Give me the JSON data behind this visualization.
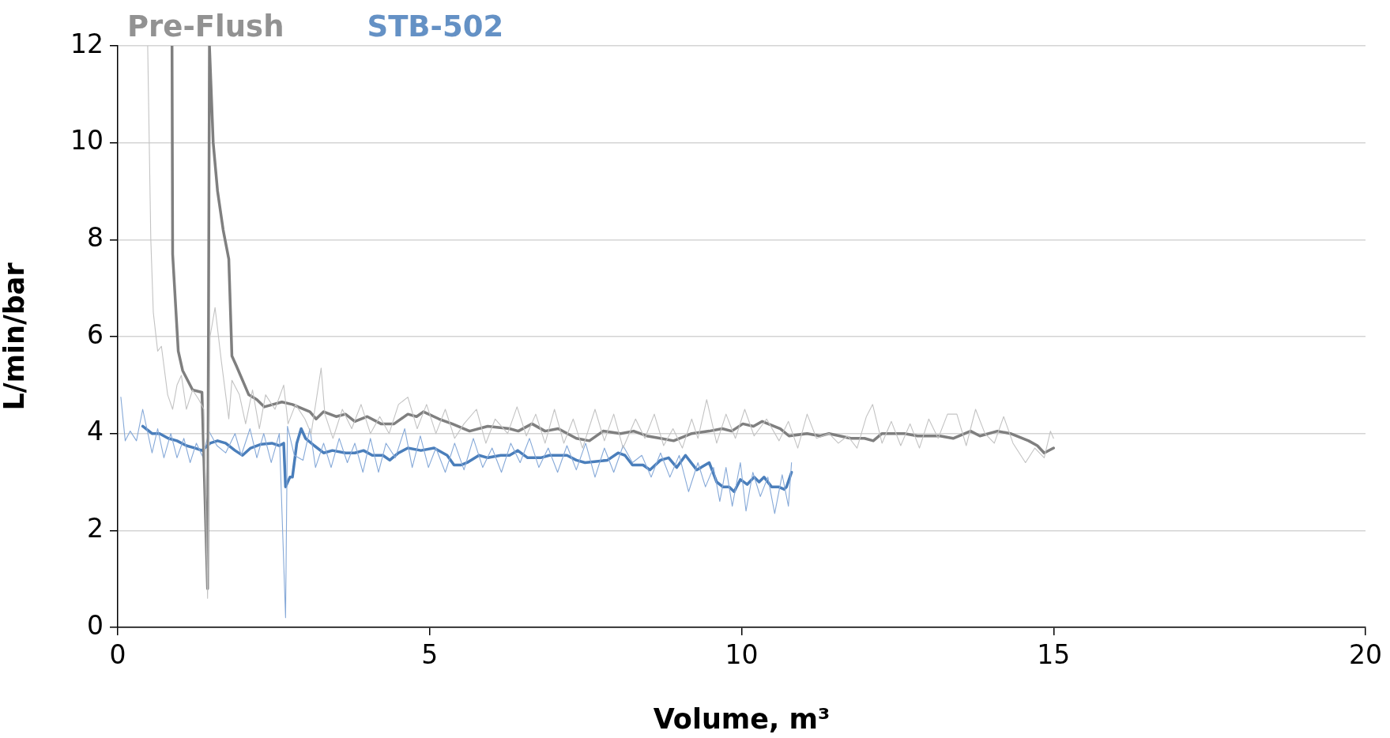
{
  "chart_data": {
    "type": "line",
    "xlabel": "Volume, m³",
    "ylabel": "L/min/bar",
    "xlim": [
      0,
      20
    ],
    "xticks": [
      0,
      5,
      10,
      15,
      20
    ],
    "ylim": [
      0,
      12
    ],
    "yticks": [
      0,
      2,
      4,
      6,
      8,
      10,
      12
    ],
    "grid": "y",
    "legend": "top left",
    "marker": "none",
    "line_style": "solid",
    "series": [
      {
        "color": "#c3c3c3",
        "x": [
          0.48,
          0.53,
          0.57,
          0.64,
          0.7,
          0.8,
          0.88,
          0.95,
          1.02,
          1.1,
          1.2,
          1.3,
          1.38,
          1.44,
          1.48,
          1.56,
          1.66,
          1.73,
          1.78,
          1.83,
          1.95,
          2.05,
          2.16,
          2.27,
          2.37,
          2.52,
          2.66,
          2.73,
          2.85,
          3.0,
          3.1,
          3.26,
          3.32,
          3.45,
          3.6,
          3.75,
          3.9,
          4.05,
          4.2,
          4.35,
          4.5,
          4.65,
          4.8,
          4.95,
          5.1,
          5.25,
          5.4,
          5.55,
          5.75,
          5.9,
          6.05,
          6.25,
          6.4,
          6.55,
          6.7,
          6.85,
          7.0,
          7.15,
          7.3,
          7.45,
          7.65,
          7.8,
          7.95,
          8.1,
          8.3,
          8.45,
          8.6,
          8.75,
          8.9,
          9.05,
          9.2,
          9.3,
          9.44,
          9.6,
          9.75,
          9.9,
          10.05,
          10.2,
          10.4,
          10.6,
          10.75,
          10.9,
          11.05,
          11.2,
          11.4,
          11.55,
          11.7,
          11.85,
          12.0,
          12.1,
          12.25,
          12.4,
          12.55,
          12.7,
          12.85,
          13.0,
          13.15,
          13.3,
          13.45,
          13.6,
          13.75,
          13.9,
          14.05,
          14.2,
          14.35,
          14.55,
          14.7,
          14.85,
          14.95,
          15.0
        ],
        "values": [
          12,
          8,
          6.5,
          5.7,
          5.8,
          4.8,
          4.5,
          5.0,
          5.2,
          4.5,
          4.9,
          4.7,
          4.5,
          0.6,
          6,
          6.6,
          5.5,
          4.8,
          4.3,
          5.1,
          4.8,
          4.2,
          4.9,
          4.1,
          4.8,
          4.5,
          5.0,
          4.2,
          4.6,
          4.3,
          4.0,
          5.35,
          4.4,
          3.9,
          4.5,
          4.1,
          4.6,
          4.0,
          4.35,
          4.0,
          4.6,
          4.75,
          4.1,
          4.6,
          4.0,
          4.5,
          3.9,
          4.2,
          4.5,
          3.8,
          4.3,
          4.0,
          4.55,
          3.95,
          4.4,
          3.8,
          4.5,
          3.8,
          4.3,
          3.7,
          4.5,
          3.85,
          4.4,
          3.7,
          4.3,
          3.9,
          4.4,
          3.75,
          4.1,
          3.7,
          4.3,
          3.9,
          4.7,
          3.8,
          4.4,
          3.9,
          4.5,
          3.95,
          4.3,
          3.85,
          4.25,
          3.7,
          4.4,
          3.9,
          4.0,
          3.8,
          3.95,
          3.7,
          4.35,
          4.6,
          3.8,
          4.25,
          3.75,
          4.2,
          3.7,
          4.3,
          3.9,
          4.4,
          4.4,
          3.75,
          4.5,
          4.0,
          3.8,
          4.35,
          3.8,
          3.4,
          3.7,
          3.5,
          4.05,
          3.9
        ]
      },
      {
        "name": "Pre-Flush",
        "color": "#7f7f7f",
        "x": [
          0.87,
          0.88,
          0.97,
          1.04,
          1.2,
          1.35,
          1.44,
          1.47,
          1.53,
          1.6,
          1.69,
          1.78,
          1.83,
          1.9,
          2.1,
          2.23,
          2.35,
          2.63,
          2.8,
          3.08,
          3.18,
          3.3,
          3.5,
          3.65,
          3.8,
          4.0,
          4.22,
          4.43,
          4.65,
          4.79,
          4.9,
          5.15,
          5.36,
          5.64,
          5.93,
          6.28,
          6.42,
          6.64,
          6.85,
          7.06,
          7.35,
          7.56,
          7.78,
          8.06,
          8.27,
          8.48,
          8.7,
          8.91,
          9.2,
          9.48,
          9.69,
          9.84,
          10.02,
          10.19,
          10.33,
          10.62,
          10.76,
          11.05,
          11.26,
          11.4,
          11.75,
          11.97,
          12.11,
          12.25,
          12.61,
          12.82,
          13.18,
          13.39,
          13.67,
          13.82,
          14.1,
          14.31,
          14.6,
          14.74,
          14.85,
          15.0
        ],
        "values": [
          12,
          7.7,
          5.7,
          5.3,
          4.9,
          4.85,
          0.8,
          12,
          10,
          9,
          8.2,
          7.6,
          5.6,
          5.4,
          4.8,
          4.7,
          4.55,
          4.65,
          4.6,
          4.45,
          4.3,
          4.45,
          4.35,
          4.4,
          4.25,
          4.35,
          4.2,
          4.2,
          4.4,
          4.35,
          4.45,
          4.3,
          4.2,
          4.05,
          4.15,
          4.1,
          4.05,
          4.2,
          4.05,
          4.1,
          3.9,
          3.85,
          4.05,
          4.0,
          4.05,
          3.95,
          3.9,
          3.85,
          4.0,
          4.05,
          4.1,
          4.05,
          4.2,
          4.15,
          4.25,
          4.1,
          3.95,
          4.0,
          3.95,
          4.0,
          3.9,
          3.9,
          3.85,
          4.0,
          4.0,
          3.95,
          3.95,
          3.9,
          4.05,
          3.95,
          4.05,
          4.0,
          3.85,
          3.75,
          3.6,
          3.7
        ]
      },
      {
        "color": "#86a9d8",
        "x": [
          0.05,
          0.12,
          0.2,
          0.3,
          0.4,
          0.55,
          0.64,
          0.74,
          0.85,
          0.95,
          1.06,
          1.16,
          1.26,
          1.37,
          1.46,
          1.59,
          1.73,
          1.88,
          1.98,
          2.12,
          2.23,
          2.34,
          2.46,
          2.59,
          2.69,
          2.72,
          2.83,
          2.97,
          3.08,
          3.17,
          3.3,
          3.42,
          3.55,
          3.68,
          3.8,
          3.93,
          4.05,
          4.18,
          4.3,
          4.45,
          4.6,
          4.72,
          4.85,
          4.98,
          5.1,
          5.25,
          5.4,
          5.55,
          5.7,
          5.85,
          6.0,
          6.15,
          6.3,
          6.45,
          6.6,
          6.75,
          6.9,
          7.05,
          7.2,
          7.35,
          7.5,
          7.65,
          7.8,
          7.95,
          8.1,
          8.25,
          8.4,
          8.55,
          8.7,
          8.85,
          9.0,
          9.15,
          9.3,
          9.42,
          9.55,
          9.65,
          9.75,
          9.85,
          9.98,
          10.07,
          10.18,
          10.3,
          10.42,
          10.53,
          10.65,
          10.75,
          10.8
        ],
        "values": [
          4.75,
          3.85,
          4.05,
          3.85,
          4.5,
          3.6,
          4.1,
          3.5,
          4.0,
          3.5,
          3.9,
          3.4,
          3.8,
          3.5,
          4.05,
          3.75,
          3.6,
          4.0,
          3.55,
          4.1,
          3.5,
          4.0,
          3.4,
          4.0,
          0.2,
          4.15,
          3.55,
          3.45,
          4.1,
          3.3,
          3.8,
          3.3,
          3.9,
          3.4,
          3.8,
          3.2,
          3.9,
          3.2,
          3.8,
          3.5,
          4.1,
          3.3,
          3.95,
          3.3,
          3.7,
          3.2,
          3.8,
          3.25,
          3.9,
          3.3,
          3.7,
          3.2,
          3.8,
          3.4,
          3.9,
          3.3,
          3.7,
          3.2,
          3.75,
          3.25,
          3.8,
          3.1,
          3.7,
          3.2,
          3.75,
          3.4,
          3.55,
          3.1,
          3.6,
          3.1,
          3.55,
          2.8,
          3.4,
          2.9,
          3.3,
          2.6,
          3.3,
          2.5,
          3.4,
          2.4,
          3.2,
          2.7,
          3.1,
          2.35,
          3.15,
          2.5,
          3.4
        ]
      },
      {
        "name": "STB-502",
        "color": "#4a7ebb",
        "x": [
          0.4,
          0.55,
          0.67,
          0.81,
          0.95,
          1.1,
          1.24,
          1.35,
          1.48,
          1.6,
          1.73,
          1.88,
          2.0,
          2.13,
          2.3,
          2.47,
          2.59,
          2.66,
          2.69,
          2.76,
          2.8,
          2.87,
          2.94,
          3.01,
          3.15,
          3.3,
          3.44,
          3.65,
          3.8,
          3.94,
          4.08,
          4.25,
          4.36,
          4.5,
          4.65,
          4.86,
          5.07,
          5.28,
          5.39,
          5.5,
          5.6,
          5.79,
          5.93,
          6.14,
          6.28,
          6.41,
          6.57,
          6.78,
          6.92,
          7.2,
          7.35,
          7.49,
          7.85,
          8.02,
          8.13,
          8.25,
          8.42,
          8.53,
          8.7,
          8.83,
          8.96,
          9.1,
          9.28,
          9.35,
          9.48,
          9.6,
          9.7,
          9.8,
          9.88,
          9.98,
          10.09,
          10.2,
          10.28,
          10.36,
          10.48,
          10.59,
          10.68,
          10.72,
          10.8
        ],
        "values": [
          4.15,
          4.0,
          4.0,
          3.9,
          3.85,
          3.75,
          3.7,
          3.65,
          3.8,
          3.85,
          3.8,
          3.65,
          3.55,
          3.7,
          3.78,
          3.8,
          3.75,
          3.8,
          2.9,
          3.1,
          3.1,
          3.8,
          4.1,
          3.9,
          3.75,
          3.6,
          3.65,
          3.6,
          3.6,
          3.65,
          3.55,
          3.55,
          3.45,
          3.6,
          3.7,
          3.65,
          3.7,
          3.55,
          3.35,
          3.35,
          3.4,
          3.55,
          3.5,
          3.55,
          3.55,
          3.65,
          3.5,
          3.5,
          3.55,
          3.55,
          3.45,
          3.4,
          3.45,
          3.6,
          3.55,
          3.35,
          3.35,
          3.25,
          3.45,
          3.5,
          3.3,
          3.55,
          3.25,
          3.3,
          3.4,
          3.0,
          2.9,
          2.9,
          2.8,
          3.05,
          2.95,
          3.1,
          3.0,
          3.1,
          2.9,
          2.9,
          2.85,
          2.9,
          3.2
        ]
      }
    ]
  }
}
